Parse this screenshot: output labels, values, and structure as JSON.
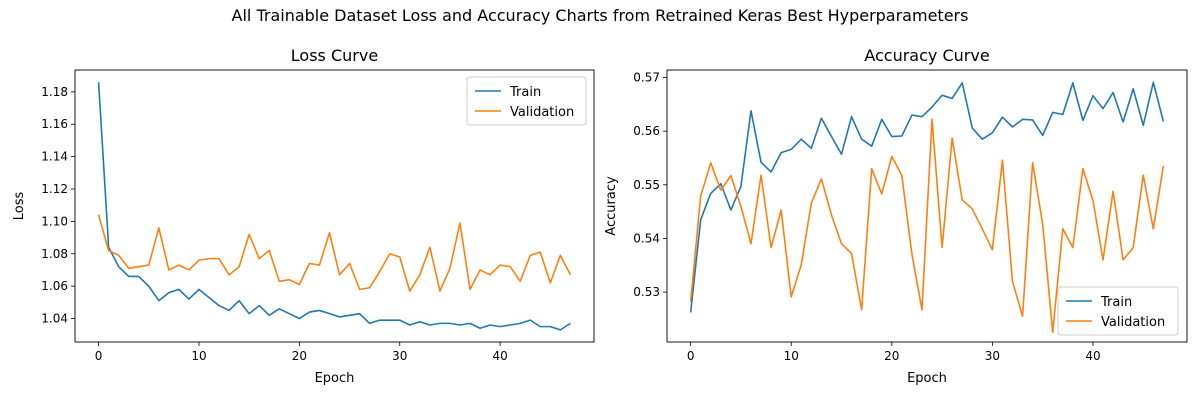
{
  "figure": {
    "suptitle": "All Trainable Dataset Loss and Accuracy Charts from Retrained Keras Best Hyperparameters"
  },
  "colors": {
    "train": "#1f77b4",
    "validation": "#ff7f0e"
  },
  "chart_data": [
    {
      "type": "line",
      "title": "Loss Curve",
      "xlabel": "Epoch",
      "ylabel": "Loss",
      "xlim": [
        -2.35,
        49.35
      ],
      "ylim": [
        1.0255,
        1.1935
      ],
      "xticks": [
        0,
        10,
        20,
        30,
        40
      ],
      "xtick_labels": [
        "0",
        "10",
        "20",
        "30",
        "40"
      ],
      "yticks": [
        1.04,
        1.06,
        1.08,
        1.1,
        1.12,
        1.14,
        1.16,
        1.18
      ],
      "ytick_labels": [
        "1.04",
        "1.06",
        "1.08",
        "1.10",
        "1.12",
        "1.14",
        "1.16",
        "1.18"
      ],
      "legend_position": "top-right",
      "x": [
        0,
        1,
        2,
        3,
        4,
        5,
        6,
        7,
        8,
        9,
        10,
        11,
        12,
        13,
        14,
        15,
        16,
        17,
        18,
        19,
        20,
        21,
        22,
        23,
        24,
        25,
        26,
        27,
        28,
        29,
        30,
        31,
        32,
        33,
        34,
        35,
        36,
        37,
        38,
        39,
        40,
        41,
        42,
        43,
        44,
        45,
        46,
        47
      ],
      "series": [
        {
          "name": "Train",
          "values": [
            1.186,
            1.084,
            1.072,
            1.066,
            1.066,
            1.06,
            1.051,
            1.056,
            1.058,
            1.052,
            1.058,
            1.053,
            1.048,
            1.045,
            1.051,
            1.043,
            1.048,
            1.042,
            1.046,
            1.043,
            1.04,
            1.044,
            1.045,
            1.043,
            1.041,
            1.042,
            1.043,
            1.037,
            1.039,
            1.039,
            1.039,
            1.036,
            1.038,
            1.036,
            1.037,
            1.037,
            1.036,
            1.037,
            1.034,
            1.036,
            1.035,
            1.036,
            1.037,
            1.039,
            1.035,
            1.035,
            1.033,
            1.037
          ]
        },
        {
          "name": "Validation",
          "values": [
            1.104,
            1.082,
            1.079,
            1.071,
            1.072,
            1.073,
            1.096,
            1.07,
            1.073,
            1.07,
            1.076,
            1.077,
            1.077,
            1.067,
            1.072,
            1.092,
            1.077,
            1.082,
            1.063,
            1.064,
            1.061,
            1.074,
            1.073,
            1.093,
            1.067,
            1.074,
            1.058,
            1.059,
            1.069,
            1.08,
            1.078,
            1.057,
            1.067,
            1.084,
            1.057,
            1.071,
            1.099,
            1.058,
            1.07,
            1.067,
            1.073,
            1.072,
            1.063,
            1.079,
            1.081,
            1.062,
            1.079,
            1.067
          ]
        }
      ]
    },
    {
      "type": "line",
      "title": "Accuracy Curve",
      "xlabel": "Epoch",
      "ylabel": "Accuracy",
      "xlim": [
        -2.35,
        49.35
      ],
      "ylim": [
        0.5207,
        0.5714
      ],
      "xticks": [
        0,
        10,
        20,
        30,
        40
      ],
      "xtick_labels": [
        "0",
        "10",
        "20",
        "30",
        "40"
      ],
      "yticks": [
        0.53,
        0.54,
        0.55,
        0.56,
        0.57
      ],
      "ytick_labels": [
        "0.53",
        "0.54",
        "0.55",
        "0.56",
        "0.57"
      ],
      "legend_position": "bottom-right",
      "x": [
        0,
        1,
        2,
        3,
        4,
        5,
        6,
        7,
        8,
        9,
        10,
        11,
        12,
        13,
        14,
        15,
        16,
        17,
        18,
        19,
        20,
        21,
        22,
        23,
        24,
        25,
        26,
        27,
        28,
        29,
        30,
        31,
        32,
        33,
        34,
        35,
        36,
        37,
        38,
        39,
        40,
        41,
        42,
        43,
        44,
        45,
        46,
        47
      ],
      "series": [
        {
          "name": "Train",
          "values": [
            0.5262,
            0.5435,
            0.5484,
            0.5502,
            0.5453,
            0.5497,
            0.5638,
            0.5542,
            0.5524,
            0.556,
            0.5566,
            0.5585,
            0.5568,
            0.5624,
            0.559,
            0.5557,
            0.5627,
            0.5585,
            0.5572,
            0.5622,
            0.559,
            0.5591,
            0.563,
            0.5627,
            0.5645,
            0.5667,
            0.5661,
            0.569,
            0.5606,
            0.5585,
            0.5597,
            0.5626,
            0.5608,
            0.5622,
            0.5621,
            0.5592,
            0.5635,
            0.5631,
            0.569,
            0.562,
            0.5666,
            0.5642,
            0.5672,
            0.5617,
            0.5679,
            0.5611,
            0.5691,
            0.5618
          ]
        },
        {
          "name": "Validation",
          "values": [
            0.5282,
            0.5479,
            0.5541,
            0.549,
            0.5517,
            0.546,
            0.539,
            0.5518,
            0.5383,
            0.5453,
            0.5291,
            0.5351,
            0.5466,
            0.5511,
            0.5444,
            0.539,
            0.5372,
            0.5267,
            0.553,
            0.5483,
            0.5553,
            0.5517,
            0.5371,
            0.5267,
            0.5622,
            0.5383,
            0.5587,
            0.5472,
            0.5455,
            0.5418,
            0.5379,
            0.5546,
            0.532,
            0.5255,
            0.5541,
            0.5427,
            0.5225,
            0.5418,
            0.5383,
            0.553,
            0.5471,
            0.536,
            0.5488,
            0.536,
            0.5383,
            0.5518,
            0.5418,
            0.5535
          ]
        }
      ]
    }
  ]
}
